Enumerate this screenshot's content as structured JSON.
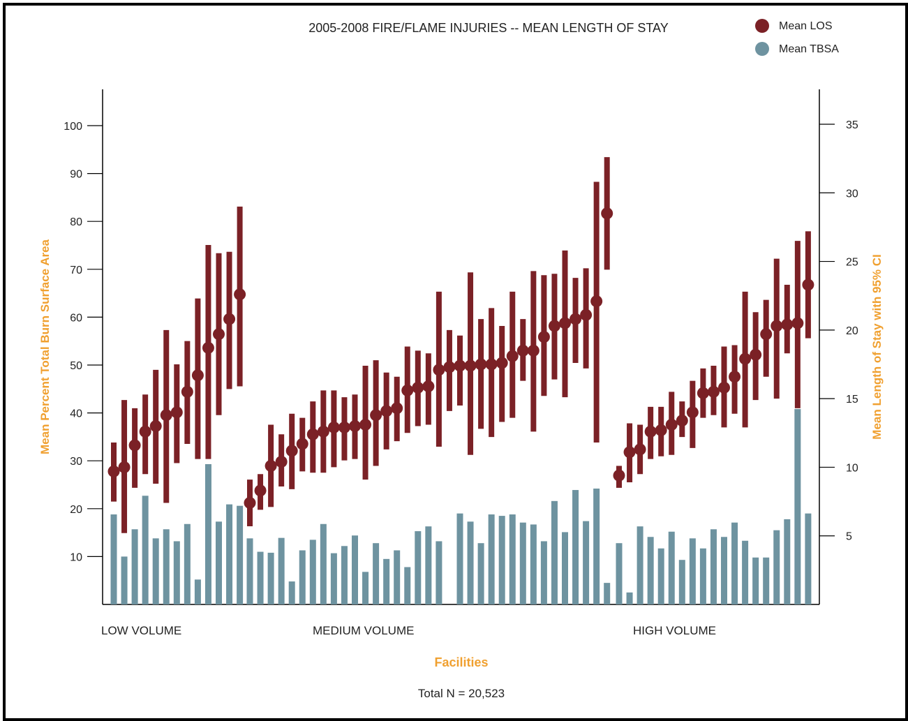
{
  "chart_data": {
    "type": "bar",
    "title": "2005-2008 FIRE/FLAME INJURIES -- MEAN LENGTH OF STAY",
    "xlabel": "Facilities",
    "ylabel_left": "Mean Percent Total Burn Surface Area",
    "ylabel_right": "Mean Length of Stay with 95% CI",
    "footnote": "Total N = 20,523",
    "y_left": {
      "range": [
        0,
        100
      ],
      "ticks": [
        10,
        20,
        30,
        40,
        50,
        60,
        70,
        80,
        90,
        100
      ]
    },
    "y_right": {
      "range": [
        0,
        35
      ],
      "ticks": [
        5,
        10,
        15,
        20,
        25,
        30,
        35
      ]
    },
    "grid": false,
    "legend_position": "top-right",
    "legend": [
      {
        "label": "Mean LOS",
        "color": "#7b2126"
      },
      {
        "label": "Mean TBSA",
        "color": "#6e93a0"
      }
    ],
    "colors": {
      "los": "#7b2126",
      "tbsa": "#6e93a0",
      "axis_title": "#f0a030"
    },
    "groups": [
      {
        "label": "LOW VOLUME",
        "tbsa": [
          18.8,
          10,
          15.7,
          22.7,
          13.8,
          15.7,
          13.2,
          16.8,
          5.2,
          29.3,
          17.3,
          20.9,
          20.6
        ],
        "los": [
          9.7,
          10,
          11.6,
          12.6,
          13,
          13.8,
          14,
          15.5,
          16.7,
          18.7,
          19.7,
          20.8,
          22.6
        ],
        "los_low": [
          7.5,
          5.2,
          8.5,
          9.5,
          8.8,
          7.4,
          10.3,
          11.7,
          10.6,
          10.6,
          13.8,
          15.7,
          15.9
        ],
        "los_high": [
          11.8,
          14.9,
          14.3,
          15.3,
          17.1,
          20,
          17.5,
          19.2,
          22.3,
          26.2,
          25.6,
          25.7,
          29
        ]
      },
      {
        "label": "MEDIUM VOLUME",
        "tbsa": [
          13.8,
          11,
          10.8,
          13.9,
          4.8,
          11.3,
          13.5,
          16.8,
          10.7,
          12.2,
          14.4,
          6.8,
          12.8,
          9.5,
          11.3,
          7.8,
          15.3,
          16.3,
          13.2,
          0,
          19,
          17.3,
          12.8,
          18.8,
          18.5,
          18.8,
          17.1,
          16.7,
          13.2,
          21.6,
          15.1,
          23.9,
          17.4,
          24.2,
          4.5
        ],
        "los": [
          7.4,
          8.3,
          10.1,
          10.4,
          11.2,
          11.7,
          12.4,
          12.6,
          12.9,
          12.9,
          13,
          13.1,
          13.8,
          14.1,
          14.3,
          15.6,
          15.8,
          15.9,
          17.1,
          17.3,
          17.4,
          17.4,
          17.5,
          17.5,
          17.6,
          18.1,
          18.5,
          18.5,
          19.5,
          20.3,
          20.5,
          20.8,
          21.1,
          22.1,
          28.5
        ],
        "los_low": [
          5.7,
          6.9,
          7.1,
          8.6,
          8.4,
          9.7,
          9.6,
          9.6,
          10,
          10.5,
          10.6,
          9.1,
          10.1,
          11.3,
          11.9,
          12.5,
          13,
          13.1,
          11.5,
          14.1,
          14.5,
          10.9,
          12.8,
          12.2,
          13.3,
          13.6,
          16.3,
          12.6,
          15.2,
          16.4,
          15.1,
          17.6,
          17.2,
          11.8,
          24.4
        ],
        "los_high": [
          9.1,
          9.5,
          13.1,
          12.4,
          13.9,
          13.6,
          14.8,
          15.6,
          15.6,
          15.1,
          15.3,
          17.4,
          17.8,
          16.9,
          16.6,
          18.8,
          18.5,
          18.3,
          22.8,
          20,
          19.6,
          24.2,
          20.8,
          21.6,
          20.3,
          22.8,
          20.8,
          24.3,
          24,
          24.1,
          25.8,
          23.8,
          24.5,
          30.8,
          32.6
        ]
      },
      {
        "label": "HIGH VOLUME",
        "tbsa": [
          12.8,
          2.5,
          16.3,
          14.1,
          11.7,
          15.2,
          9.3,
          13.8,
          11.7,
          15.7,
          14.1,
          17.1,
          13.3,
          9.8,
          9.8,
          15.5,
          17.8,
          40.8,
          19
        ],
        "los": [
          9.4,
          11.1,
          11.3,
          12.6,
          12.7,
          13.1,
          13.4,
          14,
          15.4,
          15.5,
          15.8,
          16.6,
          17.9,
          18.2,
          19.7,
          20.3,
          20.4,
          20.5,
          23.3
        ],
        "los_low": [
          8.5,
          8.9,
          9.5,
          10.6,
          10.8,
          10.9,
          12.2,
          11.4,
          13.6,
          13.8,
          12.9,
          13.9,
          12.9,
          14.9,
          16.6,
          15,
          18.3,
          14.3,
          19.4
        ],
        "los_high": [
          10.1,
          13.2,
          13.1,
          14.4,
          14.4,
          15.5,
          14.8,
          16.3,
          17.2,
          17.4,
          18.8,
          18.9,
          22.8,
          21.3,
          22.2,
          25.2,
          23.3,
          26.5,
          27.2
        ]
      }
    ]
  }
}
